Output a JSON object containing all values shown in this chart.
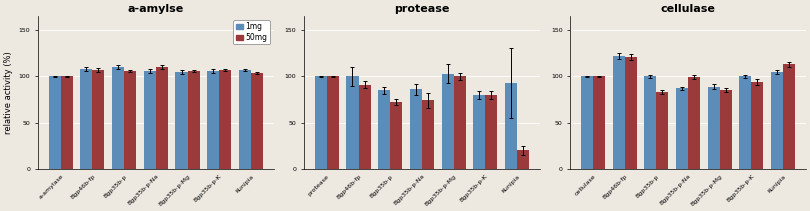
{
  "charts": [
    {
      "title": "a-amylse",
      "ylabel": "relative activity (%)",
      "ylim": [
        0,
        165
      ],
      "yticks": [
        0,
        50,
        100,
        150
      ],
      "categories": [
        "a-amylase",
        "Bgp46b-fp",
        "Bgp35b-p",
        "Bgp35b-p-Na",
        "Bgp35b-p-Mg",
        "Bgp35b-p-K",
        "Kunipia"
      ],
      "values_1mg": [
        100,
        108,
        110,
        106,
        105,
        106,
        107
      ],
      "values_50mg": [
        100,
        107,
        106,
        110,
        106,
        107,
        104
      ],
      "err_1mg": [
        0.5,
        2,
        2,
        2,
        2,
        2,
        1
      ],
      "err_50mg": [
        0.5,
        2,
        1,
        2,
        1,
        1,
        1
      ]
    },
    {
      "title": "protease",
      "ylabel": "",
      "ylim": [
        0,
        165
      ],
      "yticks": [
        0,
        50,
        100,
        150
      ],
      "categories": [
        "protease",
        "Bgp46b-fp",
        "Bgp35b-p",
        "Bgp35b-p-Na",
        "Bgp35b-p-Mg",
        "Bgp35b-p-K",
        "Kunipia"
      ],
      "values_1mg": [
        100,
        100,
        85,
        86,
        103,
        80,
        93
      ],
      "values_50mg": [
        100,
        91,
        72,
        74,
        100,
        80,
        20
      ],
      "err_1mg": [
        0.5,
        10,
        4,
        6,
        10,
        4,
        38
      ],
      "err_50mg": [
        0.5,
        4,
        3,
        8,
        4,
        4,
        5
      ]
    },
    {
      "title": "cellulase",
      "ylabel": "",
      "ylim": [
        0,
        165
      ],
      "yticks": [
        0,
        50,
        100,
        150
      ],
      "categories": [
        "cellulase",
        "Bgp46b-fp",
        "Bgp35b-p",
        "Bgp35b-p-Na",
        "Bgp35b-p-Mg",
        "Bgp35b-p-K",
        "Kunipia"
      ],
      "values_1mg": [
        100,
        122,
        100,
        87,
        89,
        100,
        105
      ],
      "values_50mg": [
        100,
        121,
        83,
        99,
        85,
        94,
        113
      ],
      "err_1mg": [
        0.5,
        3,
        2,
        2,
        3,
        2,
        2
      ],
      "err_50mg": [
        0.5,
        3,
        2,
        2,
        2,
        3,
        3
      ]
    }
  ],
  "color_1mg": "#5B8DB8",
  "color_50mg": "#9B3A3A",
  "legend_labels": [
    "1mg",
    "50mg"
  ],
  "bar_width": 0.38,
  "background_color": "#ede8e0",
  "title_fontsize": 8,
  "tick_fontsize": 4.5,
  "ylabel_fontsize": 6,
  "legend_fontsize": 5.5
}
